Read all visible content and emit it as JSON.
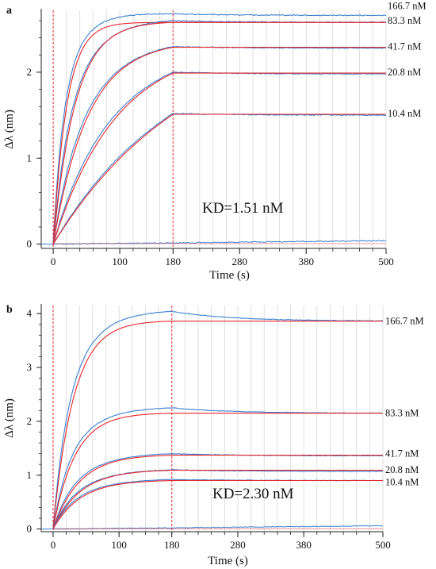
{
  "chart_data": [
    {
      "panel": "a",
      "type": "line",
      "xlabel": "Time (s)",
      "ylabel": "Δλ (nm)",
      "xlim": [
        -18,
        500
      ],
      "ylim": [
        -0.05,
        2.72
      ],
      "x_ticks": [
        0,
        100,
        180,
        280,
        380,
        500
      ],
      "y_ticks": [
        0,
        1,
        2
      ],
      "assoc_end": 180,
      "annotation": "KD=1.51 nM",
      "colors": {
        "measured": "#3a7fd1",
        "fit": "#e8262b",
        "marker": "#e8262b"
      },
      "series": [
        {
          "name": "166.7 nM",
          "label_y": 2.77,
          "plateau": 2.58,
          "k": 0.048,
          "meas_peak": 2.68,
          "meas_end": 2.66
        },
        {
          "name": "83.3 nM",
          "label_y": 2.6,
          "plateau": 2.58,
          "k": 0.03,
          "meas_peak": 2.6,
          "meas_end": 2.58
        },
        {
          "name": "41.7 nM",
          "label_y": 2.3,
          "plateau": 2.29,
          "k": 0.019,
          "meas_peak": 2.3,
          "meas_end": 2.28
        },
        {
          "name": "20.8 nM",
          "label_y": 2.0,
          "plateau": 1.99,
          "k": 0.0105,
          "meas_peak": 2.0,
          "meas_end": 1.98
        },
        {
          "name": "10.4 nM",
          "label_y": 1.52,
          "plateau": 1.51,
          "k": 0.0048,
          "meas_peak": 1.52,
          "meas_end": 1.5
        }
      ],
      "baseline": {
        "start": 0.0,
        "end": 0.04
      }
    },
    {
      "panel": "b",
      "type": "line",
      "xlabel": "Time (s)",
      "ylabel": "Δλ (nm)",
      "xlim": [
        -18,
        500
      ],
      "ylim": [
        -0.05,
        4.15
      ],
      "x_ticks": [
        0,
        100,
        180,
        280,
        380,
        500
      ],
      "y_ticks": [
        0,
        1,
        2,
        3,
        4
      ],
      "assoc_end": 180,
      "annotation": "KD=2.30 nM",
      "colors": {
        "measured": "#3a7fd1",
        "fit": "#e8262b",
        "marker": "#e8262b"
      },
      "series": [
        {
          "name": "166.7 nM",
          "label_y": 3.86,
          "plateau": 3.86,
          "k": 0.032,
          "meas_peak": 4.04,
          "meas_end": 3.86
        },
        {
          "name": "83.3 nM",
          "label_y": 2.15,
          "plateau": 2.15,
          "k": 0.03,
          "meas_peak": 2.25,
          "meas_end": 2.15
        },
        {
          "name": "41.7 nM",
          "label_y": 1.4,
          "plateau": 1.37,
          "k": 0.025,
          "meas_peak": 1.4,
          "meas_end": 1.36
        },
        {
          "name": "20.8 nM",
          "label_y": 1.1,
          "plateau": 1.09,
          "k": 0.024,
          "meas_peak": 1.1,
          "meas_end": 1.07
        },
        {
          "name": "10.4 nM",
          "label_y": 0.87,
          "plateau": 0.9,
          "k": 0.024,
          "meas_peak": 0.92,
          "meas_end": 0.9
        }
      ],
      "baseline": {
        "start": 0.0,
        "end": 0.06
      }
    }
  ]
}
